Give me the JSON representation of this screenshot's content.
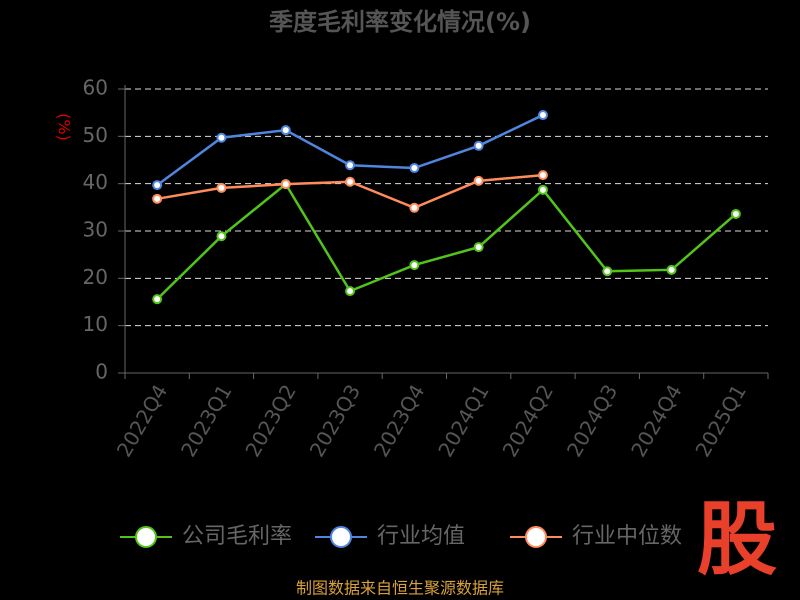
{
  "chart_data": {
    "type": "line",
    "title": "季度毛利率变化情况(%)",
    "y_label": "(%)",
    "categories": [
      "2022Q4",
      "2023Q1",
      "2023Q2",
      "2023Q3",
      "2023Q4",
      "2024Q1",
      "2024Q2",
      "2024Q3",
      "2024Q4",
      "2025Q1"
    ],
    "series": [
      {
        "name": "公司毛利率",
        "color": "#52c41a",
        "values": [
          15.6,
          28.9,
          39.9,
          17.3,
          22.8,
          26.6,
          38.7,
          21.5,
          21.8,
          33.6
        ]
      },
      {
        "name": "行业均值",
        "color": "#4f86e0",
        "values": [
          39.7,
          49.7,
          51.3,
          43.9,
          43.3,
          48.0,
          54.5,
          null,
          null,
          null
        ]
      },
      {
        "name": "行业中位数",
        "color": "#ff8c5a",
        "values": [
          36.8,
          39.1,
          39.9,
          40.4,
          34.9,
          40.6,
          41.8,
          null,
          null,
          null
        ]
      }
    ],
    "ylim": [
      0,
      60
    ],
    "yticks": [
      0,
      10,
      20,
      30,
      40,
      50,
      60
    ],
    "grid": true,
    "source": "制图数据来自恒生聚源数据库",
    "logo": "股"
  }
}
